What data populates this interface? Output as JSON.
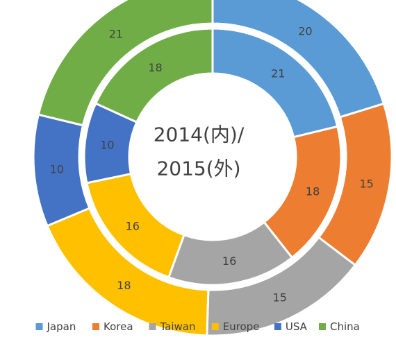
{
  "chart_data": {
    "type": "pie",
    "subtype": "double-donut",
    "title_lines": [
      "2014(内)/",
      "2015(外)"
    ],
    "categories": [
      "Japan",
      "Korea",
      "Taiwan",
      "Europe",
      "USA",
      "China"
    ],
    "series": [
      {
        "values": [
          21,
          18,
          16,
          16,
          10,
          18
        ],
        "ring": "inner"
      },
      {
        "values": [
          20,
          15,
          15,
          18,
          10,
          21
        ],
        "ring": "outer"
      }
    ],
    "colors": [
      "#5b9bd5",
      "#ed7d31",
      "#a5a5a5",
      "#ffc000",
      "#4472c4",
      "#70ad47"
    ],
    "label_color": "#404040",
    "legend_position": "bottom"
  }
}
